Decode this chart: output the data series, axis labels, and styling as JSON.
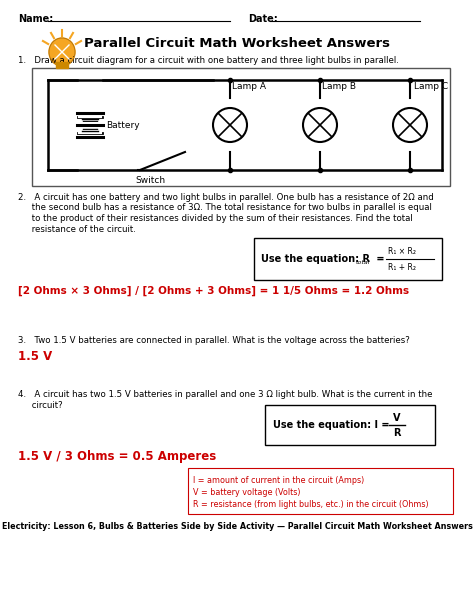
{
  "title": "Parallel Circuit Math Worksheet Answers",
  "footer": "Electricity: Lesson 6, Bulbs & Batteries Side by Side Activity — Parallel Circuit Math Worksheet Answers",
  "q1_text": "1.   Draw a circuit diagram for a circuit with one battery and three light bulbs in parallel.",
  "q2_line1": "2.   A circuit has one battery and two light bulbs in parallel. One bulb has a resistance of 2Ω and",
  "q2_line2": "     the second bulb has a resistance of 3Ω. The total resistance for two bulbs in parallel is equal",
  "q2_line3": "     to the product of their resistances divided by the sum of their resistances. Find the total",
  "q2_line4": "     resistance of the circuit.",
  "q2_ans": "[2 Ohms × 3 Ohms] / [2 Ohms + 3 Ohms] = 1 1/5 Ohms = 1.2 Ohms",
  "q3_text": "3.   Two 1.5 V batteries are connected in parallel. What is the voltage across the batteries?",
  "q3_ans": "1.5 V",
  "q4_line1": "4.   A circuit has two 1.5 V batteries in parallel and one 3 Ω light bulb. What is the current in the",
  "q4_line2": "     circuit?",
  "q4_ans": "1.5 V / 3 Ohms = 0.5 Amperes",
  "q4_legend1": "I = amount of current in the circuit (Amps)",
  "q4_legend2": "V = battery voltage (Volts)",
  "q4_legend3": "R = resistance (from light bulbs, etc.) in the circuit (Ohms)",
  "red_color": "#cc0000",
  "lamp_labels": [
    "Lamp A",
    "Lamp B",
    "Lamp C"
  ]
}
